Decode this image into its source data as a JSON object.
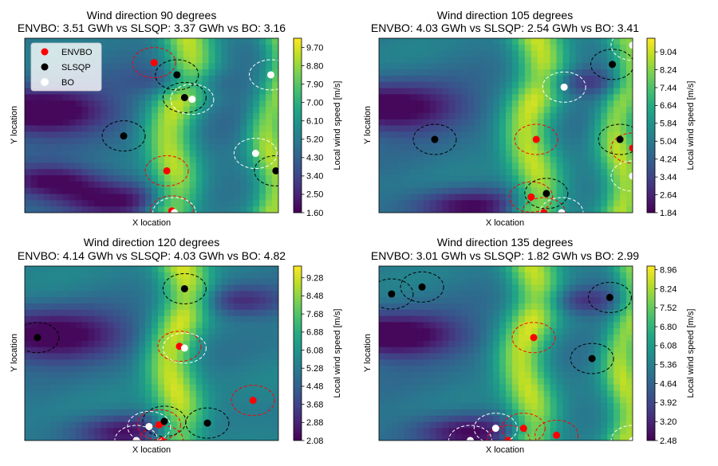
{
  "legend": {
    "items": [
      {
        "label": "ENVBO",
        "color": "#ff0000"
      },
      {
        "label": "SLSQP",
        "color": "#000000"
      },
      {
        "label": "BO",
        "color": "#ffffff"
      }
    ]
  },
  "chart_data": [
    {
      "type": "heatmap",
      "title": "Wind direction 90 degrees",
      "subtitle": "ENVBO: 3.51 GWh vs SLSQP: 3.37 GWh vs BO: 3.16",
      "xlabel": "X location",
      "ylabel": "Y location",
      "colorbar_label": "Local wind speed [m/s]",
      "colorbar_ticks": [
        "9.70",
        "8.80",
        "7.90",
        "7.00",
        "6.10",
        "5.20",
        "4.30",
        "3.40",
        "2.50",
        "1.60"
      ],
      "vmin": 1.6,
      "vmax": 10.15,
      "xlim": [
        0,
        1
      ],
      "ylim": [
        0,
        1
      ],
      "legend_loc": "upper left",
      "flow": {
        "ridges": [
          [
            0.64,
            0.56,
            0.4,
            0.1
          ],
          [
            1.01,
            0.96,
            0.9,
            0.08
          ]
        ],
        "valleys": [
          [
            0.05,
            0.42,
            0.62,
            0.13
          ],
          [
            0.33,
            0.93,
            0.28,
            0.1
          ],
          [
            0.62,
            0.25,
            0.0,
            0.08
          ],
          [
            0.12,
            0.82,
            0.32,
            0.09
          ]
        ],
        "waviness": 0.3,
        "base": 0.38
      },
      "series": [
        {
          "name": "ENVBO",
          "points": [
            [
              0.51,
              0.86
            ],
            [
              0.56,
              0.24
            ],
            [
              0.58,
              0.01
            ]
          ]
        },
        {
          "name": "SLSQP",
          "points": [
            [
              0.6,
              0.79
            ],
            [
              0.63,
              0.66
            ],
            [
              0.39,
              0.44
            ],
            [
              0.99,
              0.24
            ]
          ]
        },
        {
          "name": "BO",
          "points": [
            [
              0.66,
              0.65
            ],
            [
              0.97,
              0.79
            ],
            [
              0.91,
              0.34
            ],
            [
              0.59,
              0.0
            ]
          ]
        }
      ]
    },
    {
      "type": "heatmap",
      "title": "Wind direction 105 degrees",
      "subtitle": "ENVBO: 4.03 GWh vs SLSQP: 2.54 GWh vs BO: 3.41",
      "xlabel": "X location",
      "ylabel": "Y location",
      "colorbar_label": "Local wind speed [m/s]",
      "colorbar_ticks": [
        "9.04",
        "8.24",
        "7.44",
        "6.64",
        "5.84",
        "5.04",
        "4.24",
        "3.44",
        "2.64",
        "1.84"
      ],
      "vmin": 1.84,
      "vmax": 9.65,
      "xlim": [
        0,
        1
      ],
      "ylim": [
        0,
        1
      ],
      "flow": {
        "ridges": [
          [
            0.62,
            0.6,
            0.42,
            0.1
          ],
          [
            0.98,
            0.94,
            0.9,
            0.08
          ]
        ],
        "valleys": [
          [
            0.03,
            0.4,
            0.55,
            0.14
          ],
          [
            0.35,
            0.96,
            0.3,
            0.1
          ],
          [
            0.8,
            0.25,
            0.05,
            0.08
          ]
        ],
        "waviness": 0.28,
        "base": 0.4
      },
      "series": [
        {
          "name": "ENVBO",
          "points": [
            [
              0.62,
              0.42
            ],
            [
              0.6,
              0.09
            ],
            [
              0.65,
              0.0
            ],
            [
              1.0,
              0.37
            ]
          ]
        },
        {
          "name": "SLSQP",
          "points": [
            [
              0.92,
              0.85
            ],
            [
              0.22,
              0.42
            ],
            [
              0.66,
              0.11
            ],
            [
              0.95,
              0.42
            ]
          ]
        },
        {
          "name": "BO",
          "points": [
            [
              0.73,
              0.72
            ],
            [
              1.0,
              0.96
            ],
            [
              1.0,
              0.21
            ],
            [
              0.72,
              0.0
            ]
          ]
        }
      ]
    },
    {
      "type": "heatmap",
      "title": "Wind direction 120 degrees",
      "subtitle": "ENVBO: 4.14 GWh vs SLSQP: 4.03 GWh vs BO: 4.82",
      "xlabel": "X location",
      "ylabel": "Y location",
      "colorbar_label": "Local wind speed [m/s]",
      "colorbar_ticks": [
        "9.28",
        "8.48",
        "7.68",
        "6.88",
        "6.08",
        "5.28",
        "4.48",
        "3.68",
        "2.88",
        "2.08"
      ],
      "vmin": 2.08,
      "vmax": 9.8,
      "xlim": [
        0,
        1
      ],
      "ylim": [
        0,
        1
      ],
      "flow": {
        "ridges": [
          [
            0.62,
            0.58,
            0.4,
            0.1
          ]
        ],
        "valleys": [
          [
            0.1,
            0.4,
            0.55,
            0.15
          ],
          [
            0.4,
            0.95,
            0.28,
            0.1
          ],
          [
            0.85,
            0.2,
            0.1,
            0.09
          ]
        ],
        "waviness": 0.25,
        "base": 0.42
      },
      "series": [
        {
          "name": "ENVBO",
          "points": [
            [
              0.61,
              0.54
            ],
            [
              0.9,
              0.23
            ],
            [
              0.53,
              0.09
            ],
            [
              0.54,
              0.0
            ]
          ]
        },
        {
          "name": "SLSQP",
          "points": [
            [
              0.63,
              0.87
            ],
            [
              0.05,
              0.59
            ],
            [
              0.55,
              0.11
            ],
            [
              0.72,
              0.1
            ]
          ]
        },
        {
          "name": "BO",
          "points": [
            [
              0.63,
              0.53
            ],
            [
              0.49,
              0.08
            ],
            [
              0.44,
              0.0
            ]
          ]
        }
      ]
    },
    {
      "type": "heatmap",
      "title": "Wind direction 135 degrees",
      "subtitle": "ENVBO: 3.01 GWh vs SLSQP: 1.82 GWh vs BO: 2.99",
      "xlabel": "X location",
      "ylabel": "Y location",
      "colorbar_label": "Local wind speed [m/s]",
      "colorbar_ticks": [
        "8.96",
        "8.24",
        "7.52",
        "6.80",
        "6.08",
        "5.36",
        "4.64",
        "3.92",
        "3.20",
        "2.48"
      ],
      "vmin": 2.48,
      "vmax": 9.1,
      "xlim": [
        0,
        1
      ],
      "ylim": [
        0,
        1
      ],
      "flow": {
        "ridges": [
          [
            0.6,
            0.58,
            0.42,
            0.1
          ],
          [
            1.0,
            0.96,
            0.9,
            0.08
          ]
        ],
        "valleys": [
          [
            0.05,
            0.4,
            0.58,
            0.13
          ],
          [
            0.35,
            0.95,
            0.3,
            0.1
          ],
          [
            0.8,
            0.2,
            0.05,
            0.08
          ]
        ],
        "waviness": 0.27,
        "base": 0.4
      },
      "series": [
        {
          "name": "ENVBO",
          "points": [
            [
              0.61,
              0.59
            ],
            [
              0.57,
              0.07
            ],
            [
              0.51,
              0.0
            ],
            [
              0.7,
              0.03
            ]
          ]
        },
        {
          "name": "SLSQP",
          "points": [
            [
              0.05,
              0.84
            ],
            [
              0.17,
              0.88
            ],
            [
              0.91,
              0.82
            ],
            [
              0.84,
              0.47
            ]
          ]
        },
        {
          "name": "BO",
          "points": [
            [
              0.46,
              0.07
            ],
            [
              0.36,
              0.0
            ],
            [
              1.0,
              0.0
            ]
          ]
        }
      ]
    }
  ]
}
